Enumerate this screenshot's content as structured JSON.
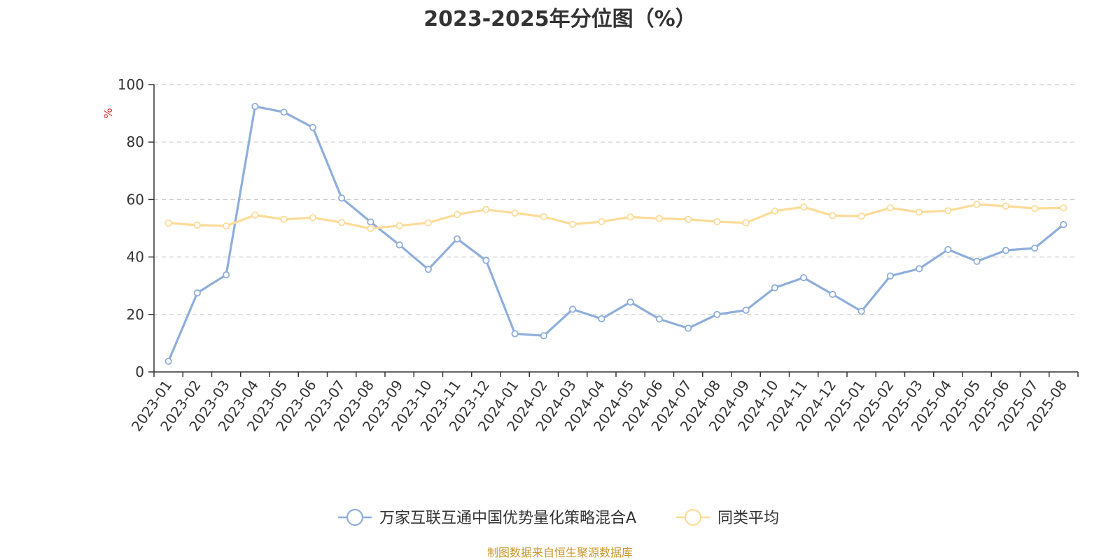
{
  "chart_data": {
    "type": "line",
    "title": "2023-2025年分位图（%）",
    "ylabel": "%",
    "ylim": [
      0,
      100
    ],
    "yticks": [
      0,
      20,
      40,
      60,
      80,
      100
    ],
    "grid": true,
    "legend_position": "bottom",
    "categories": [
      "2023-01",
      "2023-02",
      "2023-03",
      "2023-04",
      "2023-05",
      "2023-06",
      "2023-07",
      "2023-08",
      "2023-09",
      "2023-10",
      "2023-11",
      "2023-12",
      "2024-01",
      "2024-02",
      "2024-03",
      "2024-04",
      "2024-05",
      "2024-06",
      "2024-07",
      "2024-08",
      "2024-09",
      "2024-10",
      "2024-11",
      "2024-12",
      "2025-01",
      "2025-02",
      "2025-03",
      "2025-04",
      "2025-05",
      "2025-06",
      "2025-07",
      "2025-08"
    ],
    "series": [
      {
        "name": "万家互联互通中国优势量化策略混合A",
        "color": "#8eaedb",
        "values": [
          3.7,
          27.5,
          33.8,
          92.4,
          90.4,
          85.1,
          60.5,
          52.2,
          44.2,
          35.7,
          46.3,
          38.8,
          13.3,
          12.6,
          21.8,
          18.5,
          24.3,
          18.4,
          15.2,
          20.0,
          21.5,
          29.3,
          32.8,
          27.0,
          21.1,
          33.4,
          35.9,
          42.6,
          38.5,
          42.3,
          43.1,
          51.3
        ]
      },
      {
        "name": "同类平均",
        "color": "#fddb97",
        "values": [
          51.8,
          51.1,
          50.8,
          54.6,
          53.1,
          53.7,
          52.0,
          49.9,
          50.9,
          51.9,
          54.8,
          56.5,
          55.3,
          54.0,
          51.4,
          52.3,
          53.9,
          53.4,
          53.1,
          52.3,
          51.9,
          56.0,
          57.4,
          54.4,
          54.2,
          57.1,
          55.6,
          56.1,
          58.3,
          57.7,
          56.9,
          57.1
        ]
      }
    ],
    "source": "制图数据来自恒生聚源数据库"
  },
  "colors": {
    "axis": "#333333",
    "grid": "#cccccc",
    "unit": "#e03030"
  }
}
